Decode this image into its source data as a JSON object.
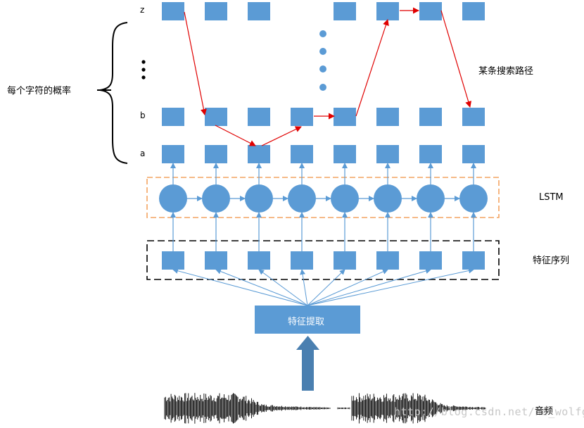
{
  "labels": {
    "row_z": "z",
    "row_b": "b",
    "row_a": "a",
    "prob_title": "每个字符的概率",
    "search_path": "某条搜索路径",
    "lstm": "LSTM",
    "feature_seq": "特征序列",
    "feature_extract": "特征提取",
    "audio": "音频",
    "watermark": "http://blog.csdn.net/he_wolfgie"
  },
  "colors": {
    "box_fill": "#5b9bd5",
    "arrow_blue": "#5b9bd5",
    "path_red": "#e00000",
    "lstm_border": "#f4a460",
    "feature_border": "#000000",
    "input_arrow": "#4a7fb0"
  },
  "icons": {
    "brace": "left-curly-brace",
    "vertical_ellipsis": "vertical-dots"
  }
}
